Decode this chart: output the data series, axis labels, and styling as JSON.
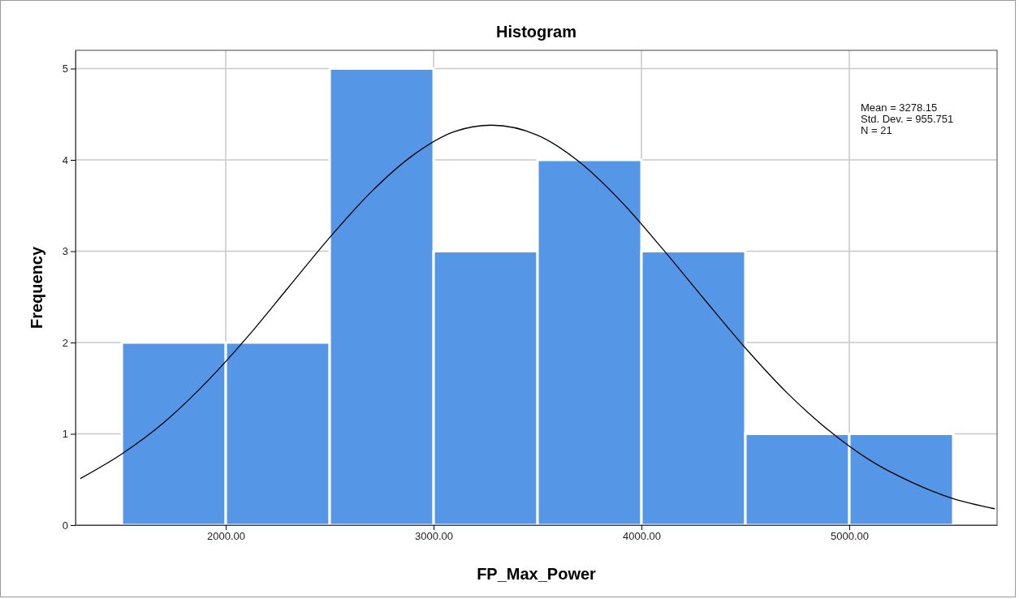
{
  "chart_data": {
    "type": "histogram",
    "title": "Histogram",
    "xlabel": "FP_Max_Power",
    "ylabel": "Frequency",
    "bins": [
      1500,
      2000,
      2500,
      3000,
      3500,
      4000,
      4500,
      5000,
      5500
    ],
    "values": [
      2,
      2,
      5,
      3,
      4,
      3,
      1,
      1
    ],
    "color": "#5596e6",
    "series": [
      {
        "type": "line",
        "color": "#000000",
        "x": [
          1300,
          1500,
          1700,
          1900,
          2100,
          2300,
          2500,
          2700,
          2900,
          3100,
          3278,
          3500,
          3700,
          3900,
          4100,
          4300,
          4500,
          4700,
          4900,
          5100,
          5300,
          5500,
          5700
        ],
        "values": [
          0.51,
          0.78,
          1.12,
          1.55,
          2.05,
          2.6,
          3.15,
          3.65,
          4.05,
          4.31,
          4.38,
          4.27,
          3.98,
          3.55,
          3.03,
          2.48,
          1.94,
          1.45,
          1.04,
          0.71,
          0.47,
          0.29,
          0.18
        ]
      }
    ],
    "xlim": [
      1277,
      5711
    ],
    "ylim": [
      0,
      5.2
    ],
    "xticks": [
      {
        "value": 2000,
        "label": "2000.00"
      },
      {
        "value": 3000,
        "label": "3000.00"
      },
      {
        "value": 4000,
        "label": "4000.00"
      },
      {
        "value": 5000,
        "label": "5000.00"
      }
    ],
    "yticks": [
      0,
      1,
      2,
      3,
      4,
      5
    ],
    "grid": true,
    "annotations": [
      "Mean = 3278.15",
      "Std. Dev. = 955.751",
      "N = 21"
    ]
  }
}
